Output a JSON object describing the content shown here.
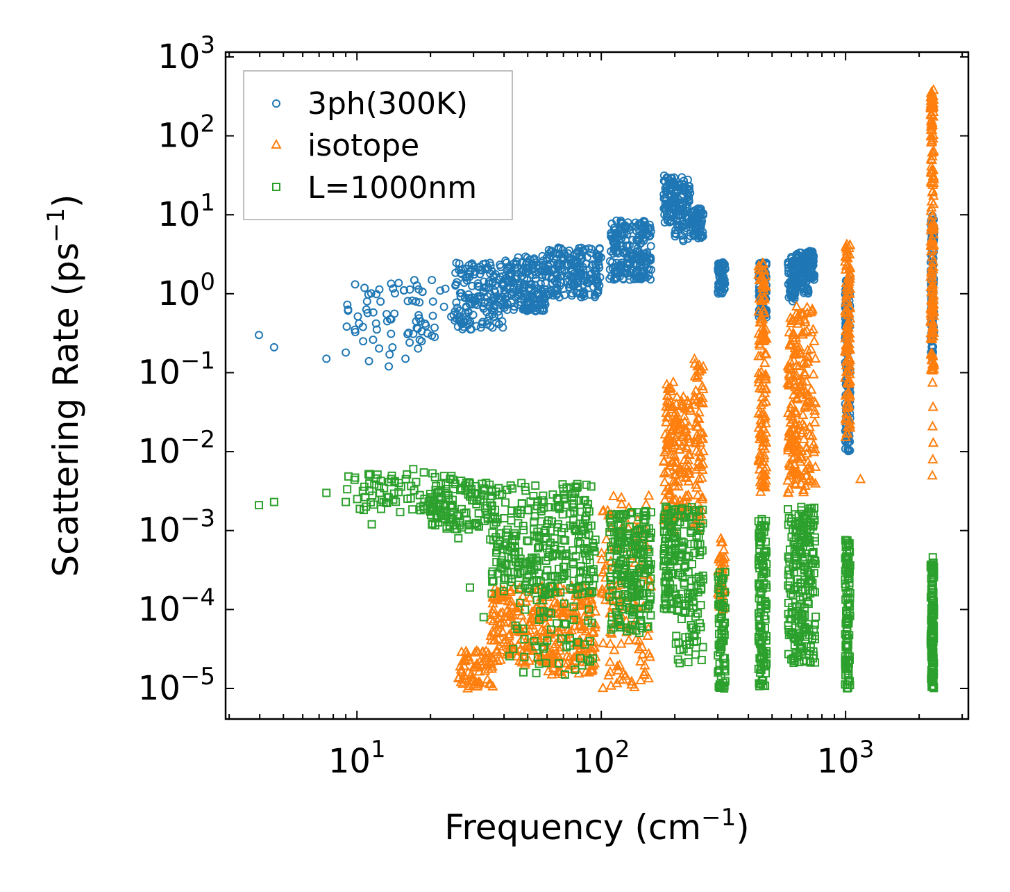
{
  "chart_data": {
    "type": "scatter",
    "title": "",
    "xlabel": "Frequency (cm",
    "xlabel_sup": "−1",
    "xlabel_end": ")",
    "ylabel": "Scattering Rate (ps",
    "ylabel_sup": "−1",
    "ylabel_end": ")",
    "xscale": "log",
    "yscale": "log",
    "xlim": [
      2.9,
      3180
    ],
    "ylim": [
      4.1e-06,
      1150
    ],
    "x_ticks": [
      {
        "base": "10",
        "exp": "1",
        "value": 10
      },
      {
        "base": "10",
        "exp": "2",
        "value": 100
      },
      {
        "base": "10",
        "exp": "3",
        "value": 1000
      }
    ],
    "y_ticks": [
      {
        "base": "10",
        "exp": "3",
        "value": 1000
      },
      {
        "base": "10",
        "exp": "2",
        "value": 100
      },
      {
        "base": "10",
        "exp": "1",
        "value": 10
      },
      {
        "base": "10",
        "exp": "0",
        "value": 1
      },
      {
        "base": "10",
        "exp": "−1",
        "value": 0.1
      },
      {
        "base": "10",
        "exp": "−2",
        "value": 0.01
      },
      {
        "base": "10",
        "exp": "−3",
        "value": 0.001
      },
      {
        "base": "10",
        "exp": "−4",
        "value": 0.0001
      },
      {
        "base": "10",
        "exp": "−5",
        "value": 1e-05
      }
    ],
    "legend_position": "top-left",
    "series": [
      {
        "name": "3ph(300K)",
        "color": "#1f77b4",
        "marker": "circle",
        "points": [
          [
            3.97,
            0.3
          ],
          [
            4.58,
            0.21
          ],
          [
            7.5,
            0.15
          ],
          [
            9.0,
            0.18
          ],
          [
            9.2,
            0.63
          ],
          [
            9.8,
            0.35
          ],
          [
            10.2,
            0.42
          ],
          [
            10.6,
            0.25
          ],
          [
            11,
            0.8
          ],
          [
            11.2,
            0.14
          ],
          [
            13.5,
            0.12
          ],
          [
            13.6,
            0.17
          ],
          [
            15.8,
            0.15
          ],
          [
            17,
            0.31
          ]
        ],
        "clusters": [
          [
            9,
            25,
            0.2,
            1.5,
            70
          ],
          [
            25,
            40,
            0.35,
            2.5,
            160
          ],
          [
            40,
            60,
            0.6,
            3,
            180
          ],
          [
            60,
            100,
            0.9,
            4,
            200
          ],
          [
            108,
            160,
            1.5,
            8.5,
            220
          ],
          [
            180,
            200,
            8,
            32,
            70
          ],
          [
            200,
            232,
            4.5,
            30,
            90
          ],
          [
            235,
            262,
            5,
            12,
            70
          ],
          [
            300,
            322,
            1,
            2.5,
            60
          ],
          [
            440,
            475,
            0.5,
            2.5,
            90
          ],
          [
            580,
            625,
            0.8,
            3,
            70
          ],
          [
            625,
            705,
            1,
            3.5,
            90
          ],
          [
            705,
            745,
            1.5,
            3.5,
            50
          ],
          [
            995,
            1045,
            0.01,
            1.5,
            130
          ],
          [
            2230,
            2300,
            0.15,
            10,
            130
          ]
        ]
      },
      {
        "name": "isotope",
        "color": "#ff7f0e",
        "marker": "triangle",
        "points": [
          [
            2280,
            0.037
          ],
          [
            2270,
            0.021
          ],
          [
            2275,
            0.008
          ],
          [
            2265,
            0.005
          ],
          [
            2285,
            0.013
          ],
          [
            2270,
            0.075
          ],
          [
            1020,
            0.017
          ],
          [
            465,
            0.009
          ],
          [
            460,
            0.0037
          ],
          [
            1150,
            0.0045
          ]
        ],
        "clusters": [
          [
            26,
            36,
            1e-05,
            3e-05,
            70
          ],
          [
            35,
            60,
            2e-05,
            0.0002,
            170
          ],
          [
            60,
            95,
            1.5e-05,
            0.0002,
            170
          ],
          [
            100,
            160,
            1e-05,
            0.003,
            130
          ],
          [
            180,
            200,
            0.001,
            0.08,
            80
          ],
          [
            200,
            232,
            0.0015,
            0.05,
            90
          ],
          [
            240,
            262,
            0.001,
            0.15,
            70
          ],
          [
            300,
            322,
            0.0001,
            0.0008,
            40
          ],
          [
            440,
            475,
            0.003,
            2.5,
            130
          ],
          [
            580,
            625,
            0.003,
            0.5,
            90
          ],
          [
            625,
            755,
            0.003,
            0.7,
            130
          ],
          [
            995,
            1045,
            0.015,
            4.5,
            110
          ],
          [
            2230,
            2300,
            0.1,
            400,
            170
          ]
        ]
      },
      {
        "name": "L=1000nm",
        "color": "#2ca02c",
        "marker": "square",
        "points": [
          [
            3.97,
            0.0021
          ],
          [
            4.58,
            0.0023
          ],
          [
            7.5,
            0.003
          ],
          [
            9.0,
            0.0023
          ],
          [
            11.5,
            0.0012
          ],
          [
            17,
            0.006
          ],
          [
            26,
            0.0008
          ],
          [
            29,
            0.00019
          ],
          [
            33,
            8e-05
          ],
          [
            55,
            2.5e-05
          ],
          [
            71,
            1.5e-05
          ],
          [
            90,
            2.2e-05
          ]
        ],
        "clusters": [
          [
            9,
            22,
            0.0017,
            0.0055,
            70
          ],
          [
            20,
            36,
            0.001,
            0.005,
            120
          ],
          [
            35,
            95,
            0.00015,
            0.004,
            320
          ],
          [
            40,
            95,
            1.5e-05,
            0.00015,
            50
          ],
          [
            108,
            160,
            5e-05,
            0.0018,
            220
          ],
          [
            180,
            200,
            0.0001,
            0.002,
            80
          ],
          [
            200,
            262,
            2e-05,
            0.002,
            130
          ],
          [
            300,
            322,
            1e-05,
            0.0003,
            70
          ],
          [
            440,
            475,
            1e-05,
            0.0015,
            130
          ],
          [
            580,
            755,
            2e-05,
            0.002,
            220
          ],
          [
            995,
            1045,
            1e-05,
            0.0008,
            110
          ],
          [
            2230,
            2300,
            1e-05,
            0.0005,
            130
          ]
        ]
      }
    ]
  }
}
